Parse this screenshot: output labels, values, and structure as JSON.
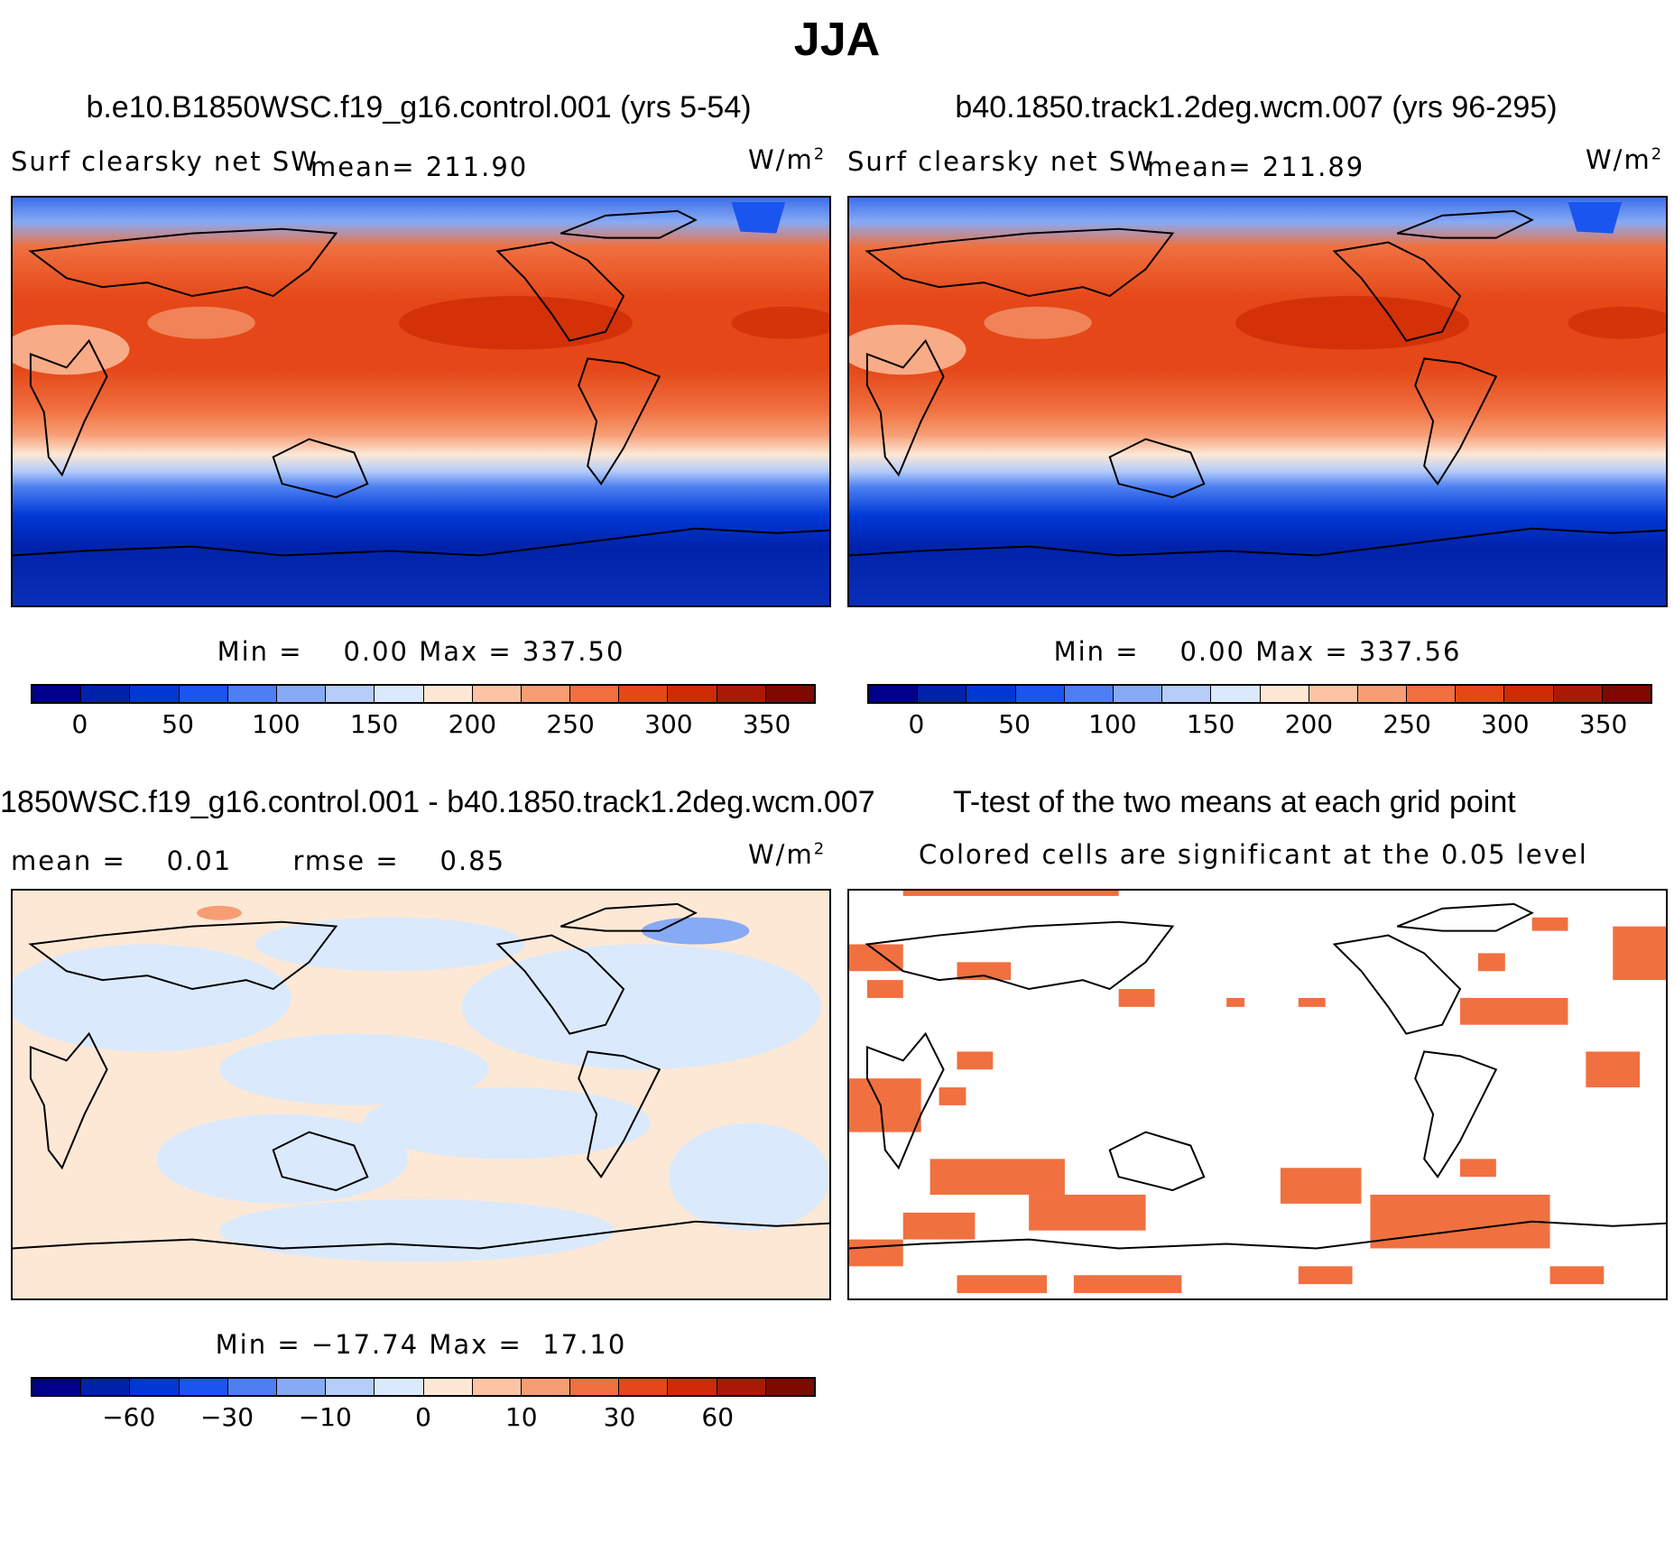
{
  "title": "JJA",
  "panel_tl": {
    "title": "b.e10.B1850WSC.f19_g16.control.001 (yrs 5-54)",
    "variable": "Surf clearsky net SW",
    "mean": "mean= 211.90",
    "units": "W/m",
    "units_exp": "2",
    "minmax": "Min =    0.00 Max = 337.50"
  },
  "panel_tr": {
    "title": "b40.1850.track1.2deg.wcm.007 (yrs 96-295)",
    "variable": "Surf clearsky net SW",
    "mean": "mean= 211.89",
    "units": "W/m",
    "units_exp": "2",
    "minmax": "Min =    0.00 Max = 337.56"
  },
  "panel_bl": {
    "title": "1850WSC.f19_g16.control.001 - b40.1850.track1.2deg.wcm.007",
    "stats": "mean =    0.01      rmse =    0.85",
    "units": "W/m",
    "units_exp": "2",
    "minmax": "Min = −17.74 Max =  17.10"
  },
  "panel_br": {
    "title": "T-test of the two means at each grid point",
    "subtitle": "Colored cells are significant at the 0.05 level"
  },
  "colorbar_abs": {
    "colors": [
      "#00008b",
      "#0022aa",
      "#0038d6",
      "#1a55f0",
      "#4d7ff2",
      "#87aaf5",
      "#b5cdf8",
      "#daeafc",
      "#fde8d6",
      "#fcc4a4",
      "#f79d74",
      "#f07040",
      "#e54718",
      "#cf2c06",
      "#a91a04",
      "#7d0a00"
    ],
    "ticks": [
      "0",
      "50",
      "100",
      "150",
      "200",
      "250",
      "300",
      "350"
    ]
  },
  "colorbar_diff": {
    "colors": [
      "#00008b",
      "#0022aa",
      "#0038d6",
      "#1a55f0",
      "#4d7ff2",
      "#87aaf5",
      "#b5cdf8",
      "#daeafc",
      "#fde8d6",
      "#fcc4a4",
      "#f79d74",
      "#f07040",
      "#e54718",
      "#cf2c06",
      "#a91a04",
      "#7d0a00"
    ],
    "ticks": [
      "−60",
      "−30",
      "−10",
      "0",
      "10",
      "30",
      "60"
    ]
  }
}
